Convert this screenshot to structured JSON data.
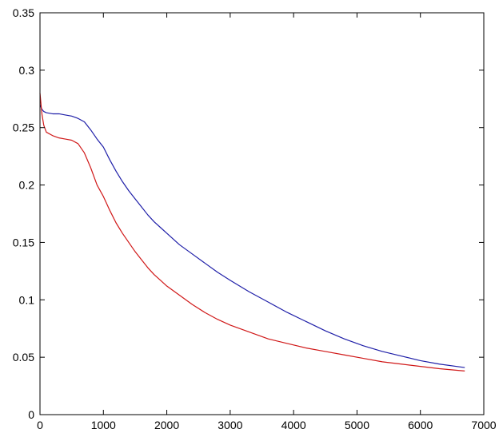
{
  "chart_data": {
    "type": "line",
    "title": "",
    "xlabel": "",
    "ylabel": "",
    "xlim": [
      0,
      7000
    ],
    "ylim": [
      0,
      0.35
    ],
    "xticks": [
      0,
      1000,
      2000,
      3000,
      4000,
      5000,
      6000,
      7000
    ],
    "yticks": [
      0,
      0.05,
      0.1,
      0.15,
      0.2,
      0.25,
      0.3,
      0.35
    ],
    "xtick_labels": [
      "0",
      "1000",
      "2000",
      "3000",
      "4000",
      "5000",
      "6000",
      "7000"
    ],
    "ytick_labels": [
      "0",
      "0.05",
      "0.1",
      "0.15",
      "0.2",
      "0.25",
      "0.3",
      "0.35"
    ],
    "grid": false,
    "legend": "none",
    "series": [
      {
        "color": "#1f1fa8",
        "x": [
          0,
          30,
          60,
          100,
          200,
          300,
          400,
          500,
          600,
          700,
          800,
          900,
          1000,
          1100,
          1200,
          1300,
          1400,
          1500,
          1600,
          1700,
          1800,
          1900,
          2000,
          2200,
          2400,
          2600,
          2800,
          3000,
          3300,
          3600,
          3900,
          4200,
          4500,
          4800,
          5100,
          5400,
          5700,
          6000,
          6300,
          6700
        ],
        "y": [
          0.27,
          0.266,
          0.264,
          0.263,
          0.262,
          0.262,
          0.261,
          0.26,
          0.258,
          0.255,
          0.248,
          0.24,
          0.233,
          0.222,
          0.212,
          0.203,
          0.195,
          0.188,
          0.181,
          0.174,
          0.168,
          0.163,
          0.158,
          0.148,
          0.14,
          0.132,
          0.124,
          0.117,
          0.107,
          0.098,
          0.089,
          0.081,
          0.073,
          0.066,
          0.06,
          0.055,
          0.051,
          0.047,
          0.044,
          0.041
        ]
      },
      {
        "color": "#d01818",
        "x": [
          0,
          30,
          60,
          100,
          200,
          300,
          400,
          500,
          600,
          700,
          800,
          900,
          1000,
          1100,
          1200,
          1300,
          1400,
          1500,
          1600,
          1700,
          1800,
          1900,
          2000,
          2200,
          2400,
          2600,
          2800,
          3000,
          3300,
          3600,
          3900,
          4200,
          4500,
          4800,
          5100,
          5400,
          5700,
          6000,
          6300,
          6700
        ],
        "y": [
          0.28,
          0.262,
          0.252,
          0.246,
          0.243,
          0.241,
          0.24,
          0.239,
          0.236,
          0.228,
          0.215,
          0.2,
          0.19,
          0.178,
          0.167,
          0.158,
          0.15,
          0.142,
          0.135,
          0.128,
          0.122,
          0.117,
          0.112,
          0.104,
          0.096,
          0.089,
          0.083,
          0.078,
          0.072,
          0.066,
          0.062,
          0.058,
          0.055,
          0.052,
          0.049,
          0.046,
          0.044,
          0.042,
          0.04,
          0.038
        ]
      }
    ]
  }
}
